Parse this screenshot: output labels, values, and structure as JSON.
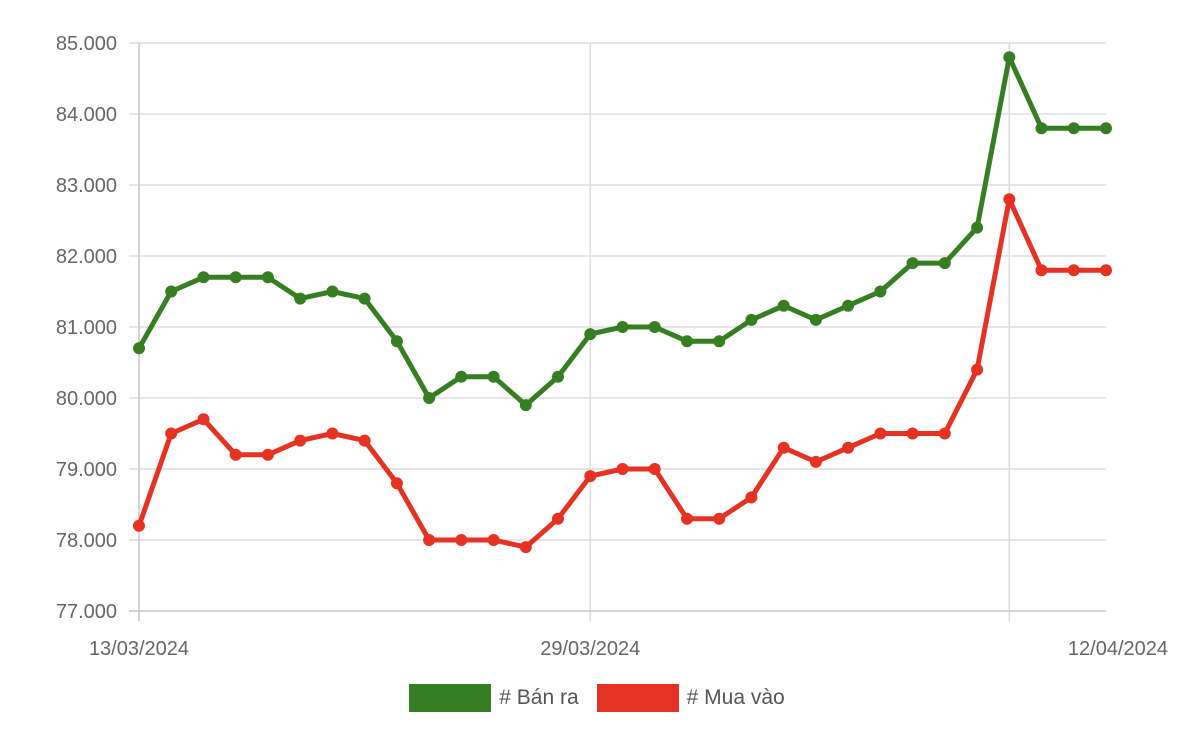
{
  "chart_data": {
    "type": "line",
    "x": [
      "13/03/2024",
      "14/03/2024",
      "15/03/2024",
      "16/03/2024",
      "18/03/2024",
      "19/03/2024",
      "20/03/2024",
      "21/03/2024",
      "22/03/2024",
      "23/03/2024",
      "25/03/2024",
      "26/03/2024",
      "27/03/2024",
      "28/03/2024",
      "29/03/2024",
      "30/03/2024",
      "01/04/2024",
      "02/04/2024",
      "03/04/2024",
      "04/04/2024",
      "05/04/2024",
      "06/04/2024",
      "07/04/2024",
      "08/04/2024",
      "09/04/2024",
      "10/04/2024",
      "11/04/2024",
      "12/04/2024",
      "13/04/2024",
      "14/04/2024",
      "15/04/2024"
    ],
    "x_tick_labels": [
      "13/03/2024",
      "29/03/2024",
      "12/04/2024"
    ],
    "y_tick_labels": [
      "85.000",
      "84.000",
      "83.000",
      "82.000",
      "81.000",
      "80.000",
      "79.000",
      "78.000",
      "77.000"
    ],
    "ylim": [
      77000,
      85000
    ],
    "grid": true,
    "legend_position": "bottom",
    "series": [
      {
        "name": "# Bán ra",
        "color": "#367e22",
        "values": [
          80700,
          81500,
          81700,
          81700,
          81700,
          81400,
          81500,
          81400,
          80800,
          80000,
          80300,
          80300,
          79900,
          80300,
          80900,
          81000,
          81000,
          80800,
          80800,
          81100,
          81300,
          81100,
          81300,
          81500,
          81900,
          81900,
          82400,
          84800,
          83800,
          83800,
          83800
        ]
      },
      {
        "name": "# Mua vào",
        "color": "#e53222",
        "values": [
          78200,
          79500,
          79700,
          79200,
          79200,
          79400,
          79500,
          79400,
          78800,
          78000,
          78000,
          78000,
          77900,
          78300,
          78900,
          79000,
          79000,
          78300,
          78300,
          78600,
          79300,
          79100,
          79300,
          79500,
          79500,
          79500,
          80400,
          82800,
          81800,
          81800,
          81800
        ]
      }
    ]
  }
}
